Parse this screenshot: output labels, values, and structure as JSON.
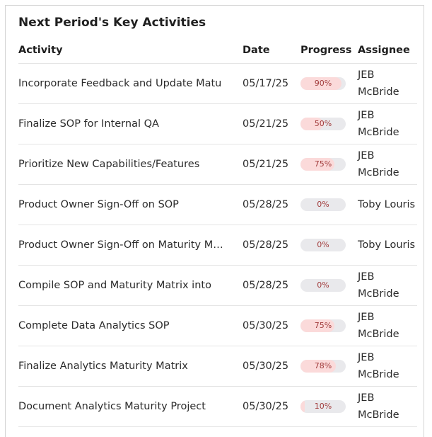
{
  "card": {
    "title": "Next Period's Key Activities"
  },
  "columns": {
    "activity": "Activity",
    "date": "Date",
    "progress": "Progress",
    "assignee": "Assignee"
  },
  "colors": {
    "progress_fill": "#fbdada",
    "progress_track": "#e9e9ec",
    "progress_text": "#a13b3b"
  },
  "rows": [
    {
      "activity": "Incorporate Feedback and Update Matu",
      "date": "05/17/25",
      "progress_label": "90%",
      "progress": 90,
      "assignee": "JEB McBride"
    },
    {
      "activity": "Finalize SOP for Internal QA",
      "date": "05/21/25",
      "progress_label": "50%",
      "progress": 50,
      "assignee": "JEB McBride"
    },
    {
      "activity": "Prioritize New Capabilities/Features",
      "date": "05/21/25",
      "progress_label": "75%",
      "progress": 75,
      "assignee": "JEB McBride"
    },
    {
      "activity": "Product Owner Sign-Off on SOP",
      "date": "05/28/25",
      "progress_label": "0%",
      "progress": 0,
      "assignee": "Toby Louris"
    },
    {
      "activity": "Product Owner Sign-Off on Maturity Matrix",
      "date": "05/28/25",
      "progress_label": "0%",
      "progress": 0,
      "assignee": "Toby Louris"
    },
    {
      "activity": "Compile SOP and Maturity Matrix into",
      "date": "05/28/25",
      "progress_label": "0%",
      "progress": 0,
      "assignee": "JEB McBride"
    },
    {
      "activity": "Complete Data Analytics SOP",
      "date": "05/30/25",
      "progress_label": "75%",
      "progress": 75,
      "assignee": "JEB McBride"
    },
    {
      "activity": "Finalize Analytics Maturity Matrix",
      "date": "05/30/25",
      "progress_label": "78%",
      "progress": 78,
      "assignee": "JEB McBride"
    },
    {
      "activity": "Document Analytics Maturity Project",
      "date": "05/30/25",
      "progress_label": "10%",
      "progress": 10,
      "assignee": "JEB McBride"
    }
  ]
}
